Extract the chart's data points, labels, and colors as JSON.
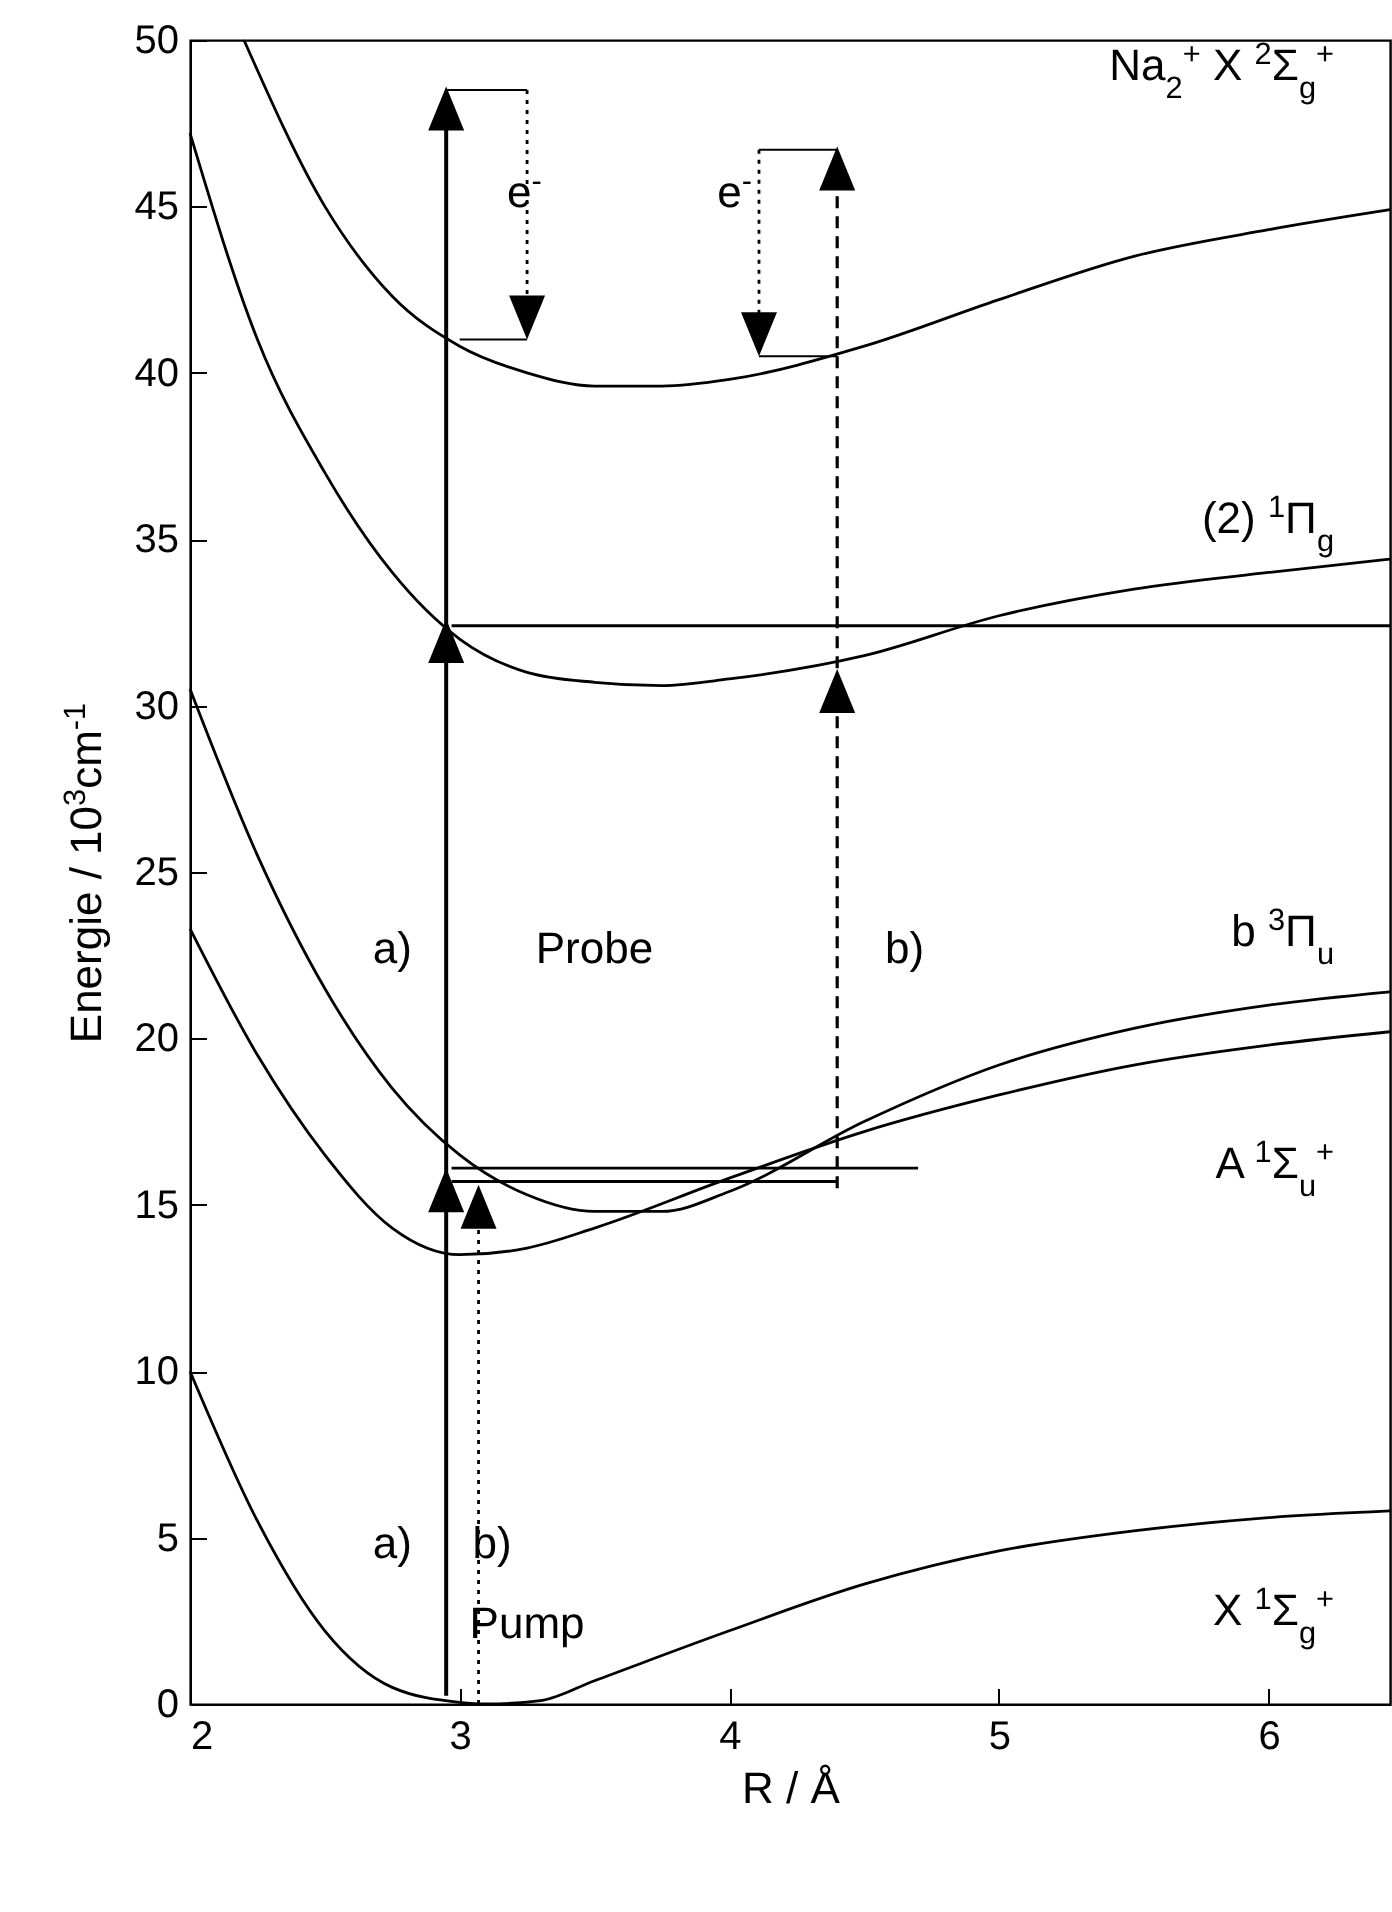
{
  "chart_data": {
    "type": "line",
    "xlabel": "R / Å",
    "ylabel": "Energie / 10$^{3}$cm$^{-1}$",
    "xlim": [
      2,
      6.45
    ],
    "ylim": [
      0,
      50
    ],
    "xticks": [
      2,
      3,
      4,
      5,
      6
    ],
    "yticks": [
      0,
      5,
      10,
      15,
      20,
      25,
      30,
      35,
      40,
      45,
      50
    ],
    "grid": false,
    "series": [
      {
        "name": "X $^{1}$Σ$_{g}$$^{+}$",
        "color": "#000000",
        "line_style": "solid",
        "x": [
          2,
          2.25,
          2.5,
          2.75,
          3,
          3.1,
          3.3,
          3.5,
          4,
          4.5,
          5,
          5.5,
          6,
          6.45
        ],
        "values": [
          10,
          5.5,
          2.2,
          0.5,
          0.05,
          0,
          0.1,
          0.7,
          2.2,
          3.6,
          4.6,
          5.2,
          5.6,
          5.8
        ]
      },
      {
        "name": "A $^{1}$Σ$_{u}$$^{+}$",
        "color": "#000000",
        "line_style": "solid",
        "x": [
          2,
          2.25,
          2.5,
          2.75,
          3,
          3.25,
          3.5,
          4,
          4.5,
          5,
          5.5,
          6,
          6.45
        ],
        "values": [
          23.3,
          19.5,
          16.5,
          14.3,
          13.5,
          13.7,
          14.3,
          15.8,
          17.2,
          18.3,
          19.2,
          19.8,
          20.2
        ]
      },
      {
        "name": "b $^{3}$Π$_{u}$",
        "color": "#000000",
        "line_style": "solid",
        "x": [
          2,
          2.25,
          2.5,
          2.75,
          3,
          3.25,
          3.5,
          3.75,
          4,
          4.5,
          5,
          5.5,
          6,
          6.45
        ],
        "values": [
          30.5,
          25.5,
          21.5,
          18.5,
          16.5,
          15.3,
          14.8,
          14.8,
          15.4,
          17.5,
          19.2,
          20.3,
          21,
          21.4
        ]
      },
      {
        "name": "(2) $^{1}$Π$_{g}$",
        "color": "#000000",
        "line_style": "solid",
        "x": [
          2,
          2.25,
          2.5,
          2.75,
          3,
          3.25,
          3.5,
          3.75,
          4,
          4.5,
          5,
          5.5,
          6,
          6.45
        ],
        "values": [
          47.2,
          41,
          37,
          34,
          32,
          31,
          30.7,
          30.6,
          30.8,
          31.5,
          32.7,
          33.5,
          34,
          34.4
        ]
      },
      {
        "name": "Na$_{2}$$^{+}$ X $^{2}$Σ$_{g}$$^{+}$",
        "color": "#000000",
        "line_style": "solid",
        "x": [
          2.2,
          2.5,
          2.75,
          3,
          3.25,
          3.5,
          3.75,
          4,
          4.5,
          5,
          5.5,
          6,
          6.45
        ],
        "values": [
          50,
          45,
          42.3,
          40.8,
          40,
          39.6,
          39.6,
          39.8,
          40.8,
          42.2,
          43.5,
          44.3,
          44.9
        ]
      },
      {
        "color": "#000000",
        "line_style": "solid",
        "x": [
          2.97,
          6.45
        ],
        "values": [
          32.4,
          32.4
        ]
      },
      {
        "color": "#000000",
        "line_style": "solid",
        "x": [
          2.97,
          4.7
        ],
        "values": [
          16.1,
          16.1
        ]
      },
      {
        "color": "#000000",
        "line_style": "solid",
        "x": [
          2.97,
          4.4
        ],
        "values": [
          15.7,
          15.7
        ]
      }
    ],
    "annotations": [
      "e$^{-}$",
      "e$^{-}$",
      "a)",
      "Probe",
      "b)",
      "a)",
      "b)",
      "Pump"
    ]
  }
}
